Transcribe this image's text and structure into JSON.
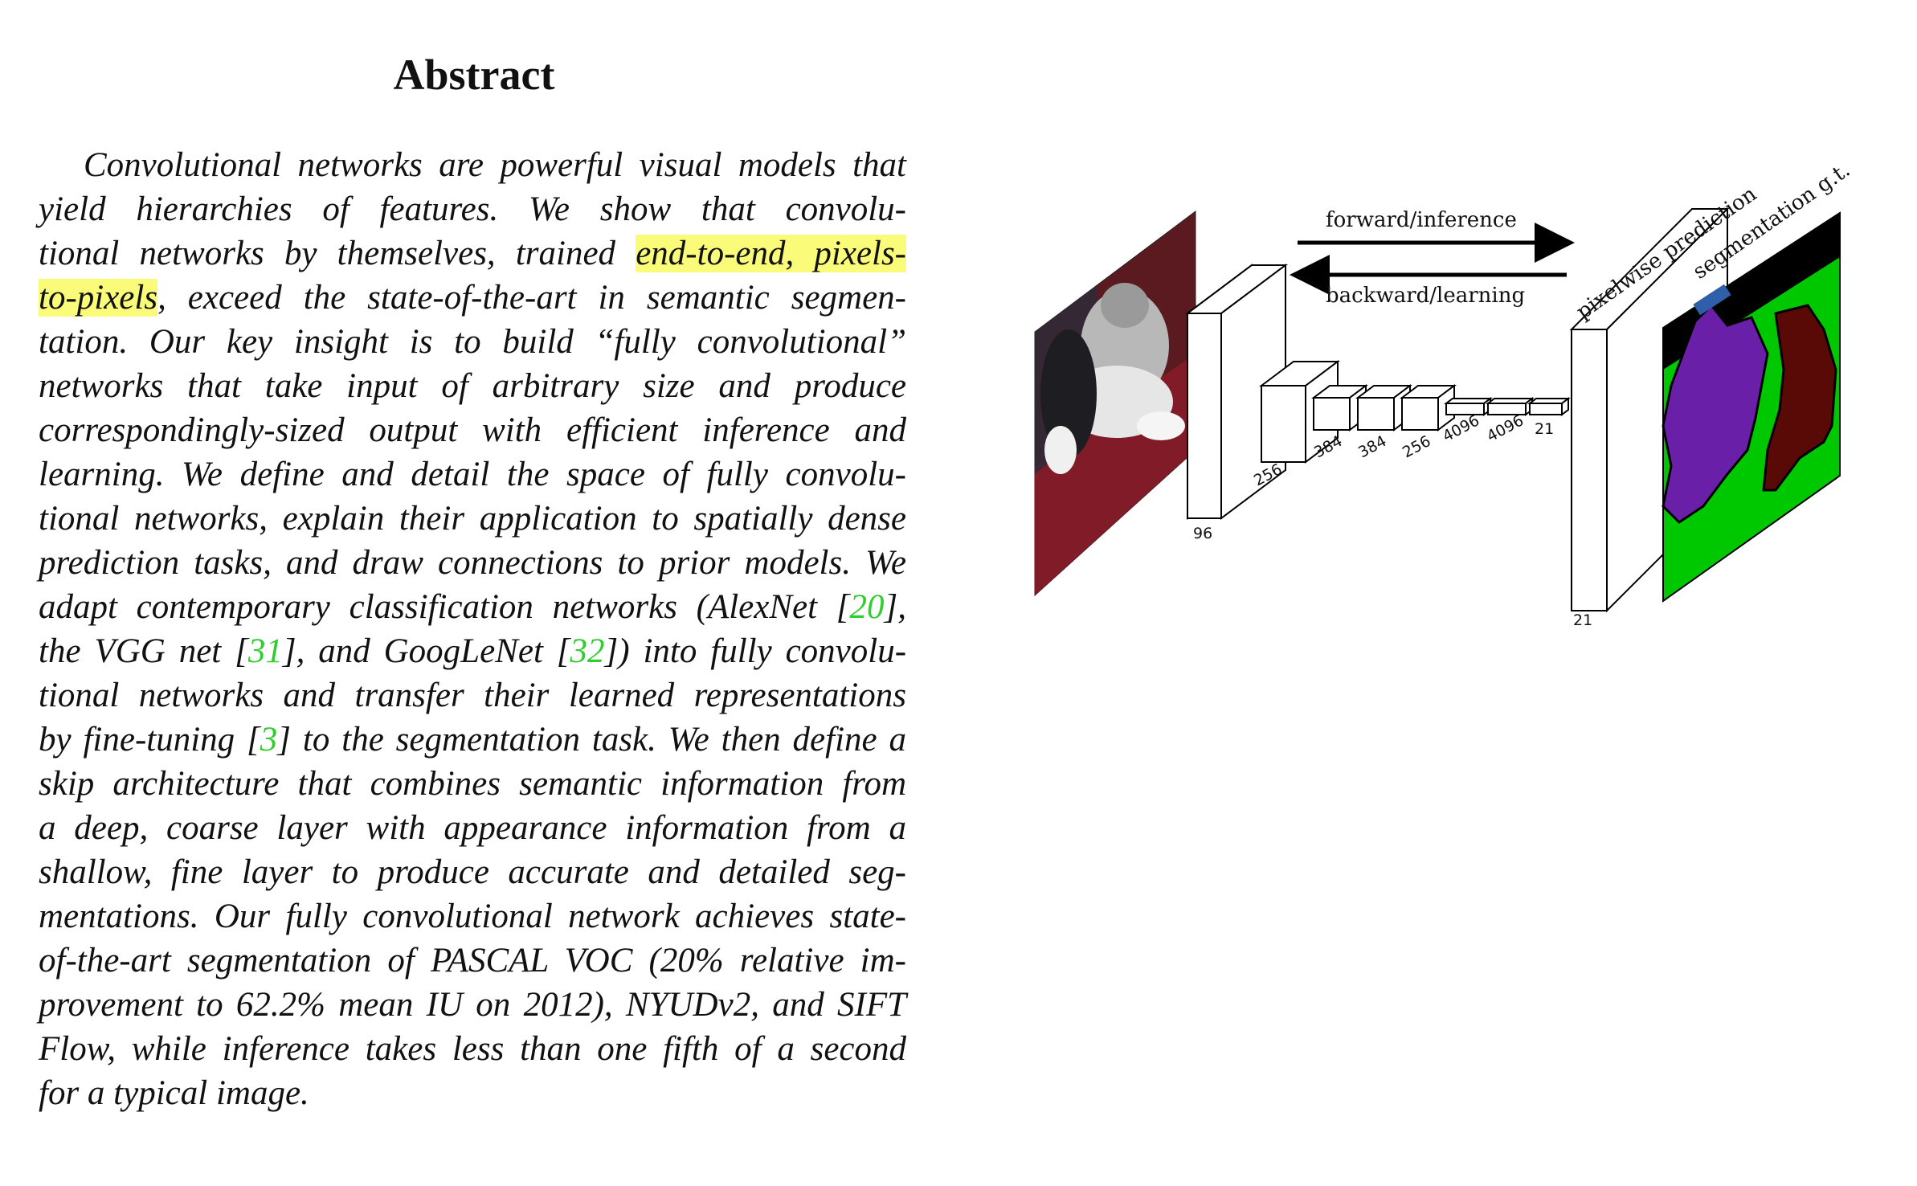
{
  "heading": "Abstract",
  "abstract": {
    "lines": [
      [
        {
          "t": "Convolutional networks are powerful visual models that"
        }
      ],
      [
        {
          "t": "yield hierarchies of features.  We show that convolu-"
        }
      ],
      [
        {
          "t": "tional networks by themselves, trained "
        },
        {
          "t": "end-to-end, pixels-",
          "hl": true
        }
      ],
      [
        {
          "t": "to-pixels",
          "hl": true
        },
        {
          "t": ", exceed the state-of-the-art in semantic segmen-"
        }
      ],
      [
        {
          "t": "tation.  Our key insight is to build “fully convolutional”"
        }
      ],
      [
        {
          "t": "networks that take input of arbitrary size and produce"
        }
      ],
      [
        {
          "t": "correspondingly-sized output with efficient inference and"
        }
      ],
      [
        {
          "t": "learning.  We define and detail the space of fully convolu-"
        }
      ],
      [
        {
          "t": "tional networks, explain their application to spatially dense"
        }
      ],
      [
        {
          "t": "prediction tasks, and draw connections to prior models. We"
        }
      ],
      [
        {
          "t": "adapt contemporary classification networks (AlexNet ["
        },
        {
          "t": "20",
          "ref": true
        },
        {
          "t": "],"
        }
      ],
      [
        {
          "t": "the VGG net ["
        },
        {
          "t": "31",
          "ref": true
        },
        {
          "t": "], and GoogLeNet ["
        },
        {
          "t": "32",
          "ref": true
        },
        {
          "t": "]) into fully convolu-"
        }
      ],
      [
        {
          "t": "tional networks and transfer their learned representations"
        }
      ],
      [
        {
          "t": "by fine-tuning ["
        },
        {
          "t": "3",
          "ref": true
        },
        {
          "t": "] to the segmentation task. We then define a"
        }
      ],
      [
        {
          "t": "skip architecture that combines semantic information from"
        }
      ],
      [
        {
          "t": "a deep, coarse layer with appearance information from a"
        }
      ],
      [
        {
          "t": "shallow, fine layer to produce accurate and detailed seg-"
        }
      ],
      [
        {
          "t": "mentations. Our fully convolutional network achieves state-"
        }
      ],
      [
        {
          "t": "of-the-art segmentation of PASCAL VOC (20% relative im-"
        }
      ],
      [
        {
          "t": "provement to 62.2% mean IU on 2012), NYUDv2, and SIFT"
        }
      ],
      [
        {
          "t": "Flow, while inference takes less than one fifth of a second"
        }
      ],
      [
        {
          "t": "for a typical image."
        }
      ]
    ]
  },
  "figure": {
    "forward_label": "forward/inference",
    "backward_label": "backward/learning",
    "pixelwise_label": "pixelwise prediction",
    "segmentation_label": "segmentation g.t.",
    "layer_labels": [
      "96",
      "256",
      "384",
      "384",
      "256",
      "4096",
      "4096",
      "21"
    ],
    "output_label": "21",
    "colors": {
      "highlight": "#fbfb7a",
      "reference": "#2fce2f",
      "seg_background": "#00c800",
      "seg_dog": "#6a1fa8",
      "seg_cat": "#5a0a06",
      "seg_boundary": "#000000",
      "gt_label_box": "#2e5fa8"
    },
    "icons": [
      "photo-of-dog-and-cat",
      "segmentation-map"
    ]
  }
}
